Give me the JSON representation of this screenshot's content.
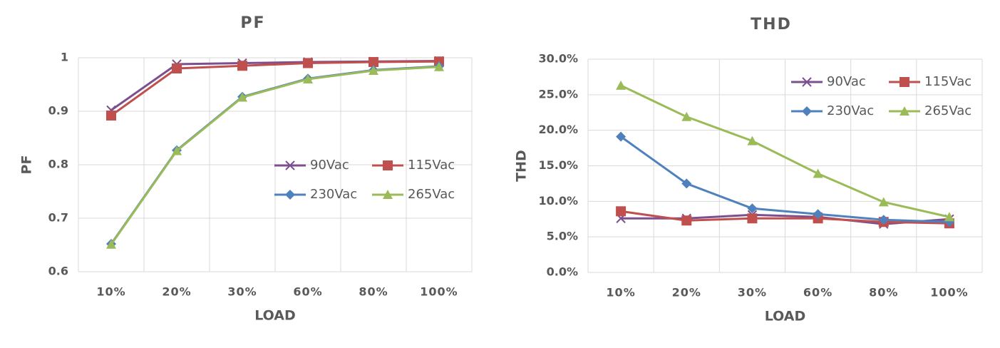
{
  "chart_data": [
    {
      "type": "line",
      "title": "PF",
      "x_label": "LOAD",
      "y_label": "PF",
      "categories": [
        "10%",
        "20%",
        "30%",
        "60%",
        "80%",
        "100%"
      ],
      "ylim": [
        0.6,
        1
      ],
      "yticks": [
        0.6,
        0.7,
        0.8,
        0.9,
        1
      ],
      "grid": true,
      "legend_position": "center-right",
      "series": [
        {
          "name": "90Vac",
          "color": "#7d4f8f",
          "marker": "x",
          "values": [
            0.902,
            0.988,
            0.99,
            0.992,
            0.993,
            0.994
          ]
        },
        {
          "name": "115Vac",
          "color": "#c0504d",
          "marker": "square",
          "values": [
            0.892,
            0.98,
            0.985,
            0.99,
            0.992,
            0.993
          ]
        },
        {
          "name": "230Vac",
          "color": "#4f81bd",
          "marker": "diamond",
          "values": [
            0.652,
            0.827,
            0.927,
            0.961,
            0.977,
            0.984
          ]
        },
        {
          "name": "265Vac",
          "color": "#9bbb59",
          "marker": "triangle",
          "values": [
            0.651,
            0.826,
            0.926,
            0.96,
            0.976,
            0.983
          ]
        }
      ]
    },
    {
      "type": "line",
      "title": "THD",
      "x_label": "LOAD",
      "y_label": "THD",
      "categories": [
        "10%",
        "20%",
        "30%",
        "60%",
        "80%",
        "100%"
      ],
      "ylim": [
        0,
        30
      ],
      "yticks": [
        {
          "value": 0,
          "label": "0.0%"
        },
        {
          "value": 5,
          "label": "5.0%"
        },
        {
          "value": 10,
          "label": "10.0%"
        },
        {
          "value": 15,
          "label": "15.0%"
        },
        {
          "value": 20,
          "label": "20.0%"
        },
        {
          "value": 25,
          "label": "25.0%"
        },
        {
          "value": 30,
          "label": "30.0%"
        }
      ],
      "grid": true,
      "legend_position": "top-right",
      "series": [
        {
          "name": "90Vac",
          "color": "#7d4f8f",
          "marker": "x",
          "values": [
            7.6,
            7.6,
            8.1,
            7.8,
            6.8,
            7.5
          ]
        },
        {
          "name": "115Vac",
          "color": "#c0504d",
          "marker": "square",
          "values": [
            8.6,
            7.3,
            7.6,
            7.6,
            7.1,
            6.9
          ]
        },
        {
          "name": "230Vac",
          "color": "#4f81bd",
          "marker": "diamond",
          "values": [
            19.1,
            12.5,
            9.0,
            8.2,
            7.4,
            7.1
          ]
        },
        {
          "name": "265Vac",
          "color": "#9bbb59",
          "marker": "triangle",
          "values": [
            26.3,
            21.9,
            18.5,
            13.9,
            9.9,
            7.8
          ]
        }
      ]
    }
  ]
}
